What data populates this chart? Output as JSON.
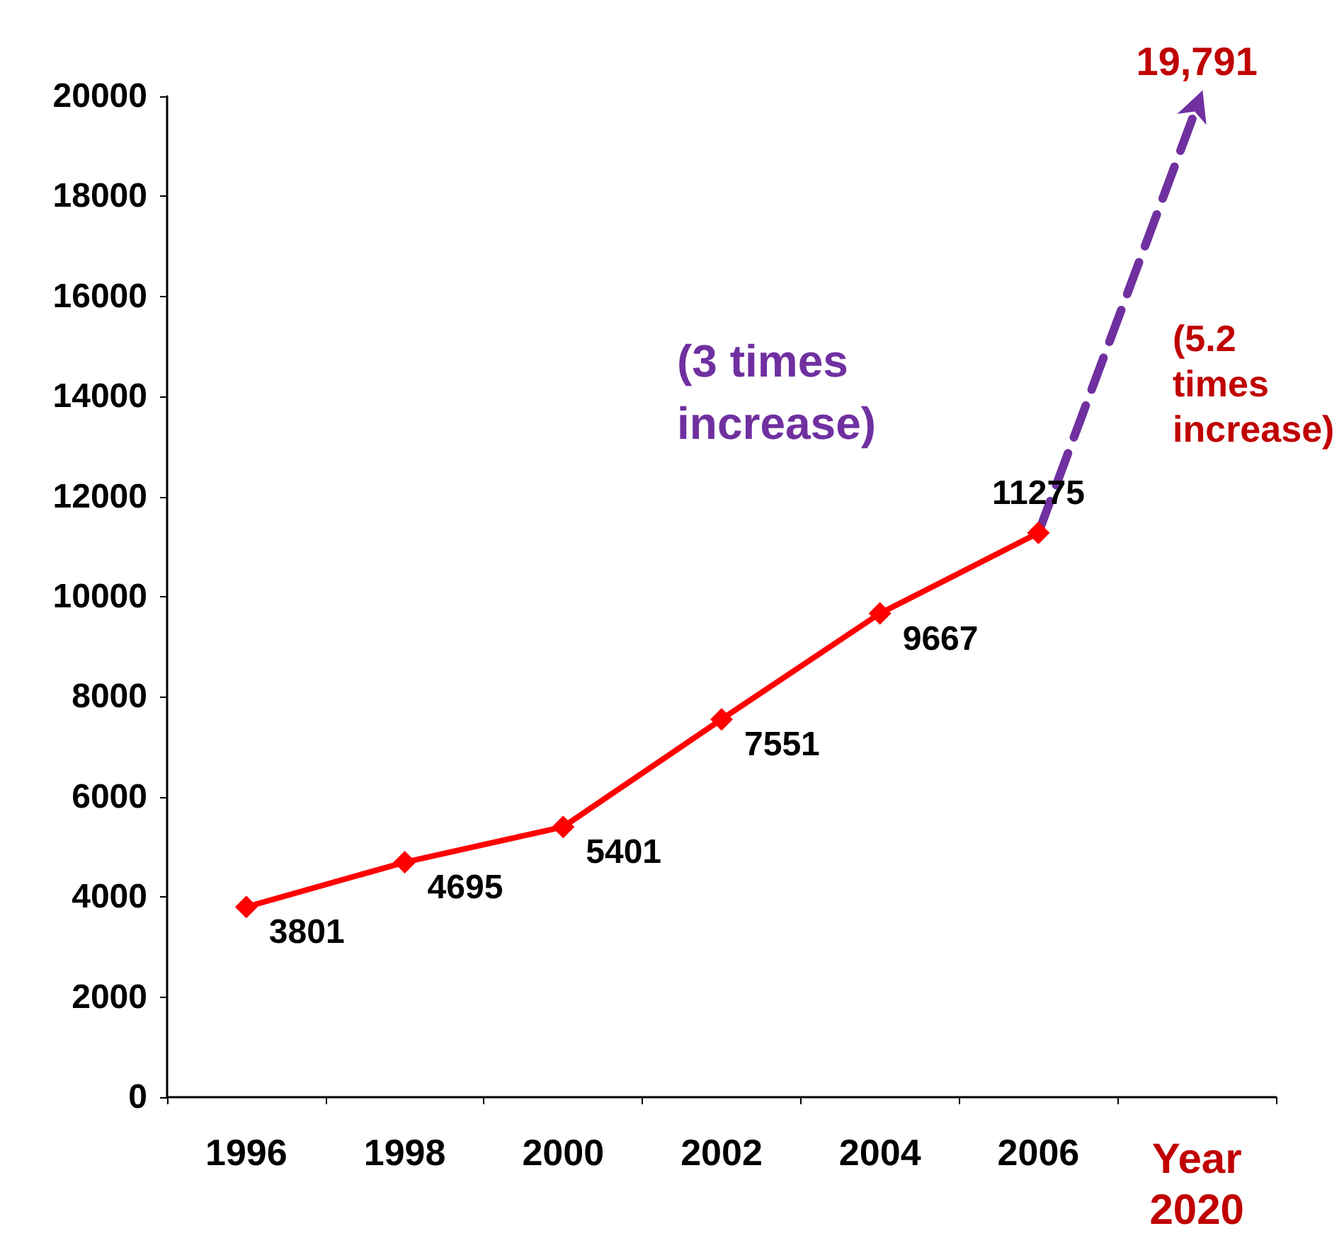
{
  "chart_data": {
    "type": "line",
    "categories": [
      "1996",
      "1998",
      "2000",
      "2002",
      "2004",
      "2006",
      "Year 2020"
    ],
    "series": [
      {
        "color": "#ff0000",
        "marker": "diamond",
        "line_style": "solid",
        "values": [
          3801,
          4695,
          5401,
          7551,
          9667,
          11275,
          null
        ],
        "value_labels": [
          "3801",
          "4695",
          "5401",
          "7551",
          "9667",
          "11275",
          null
        ]
      },
      {
        "color": "#7030a0",
        "line_style": "dashed",
        "values": [
          null,
          null,
          null,
          null,
          null,
          11275,
          19791
        ],
        "value_labels": [
          null,
          null,
          null,
          null,
          null,
          null,
          "19,791"
        ]
      }
    ],
    "ylim": [
      0,
      20000
    ],
    "yticks": [
      0,
      2000,
      4000,
      6000,
      8000,
      10000,
      12000,
      14000,
      16000,
      18000,
      20000
    ],
    "grid": false,
    "annotations": [
      "(3 times increase)",
      "(5.2 times increase)"
    ]
  }
}
